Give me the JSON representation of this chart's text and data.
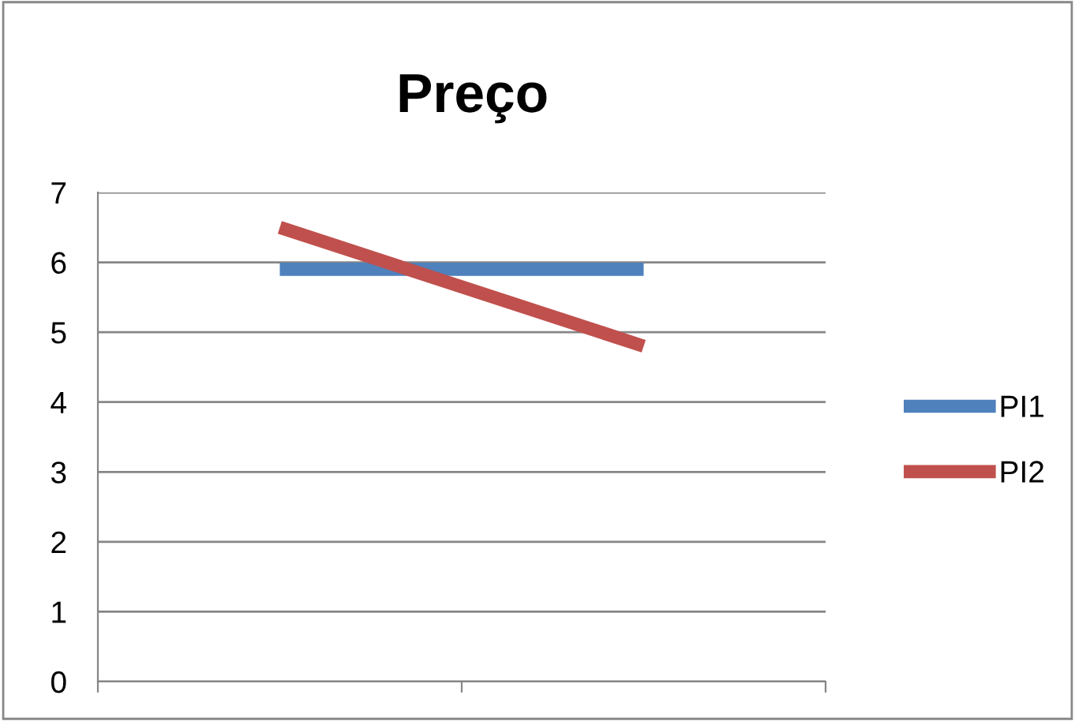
{
  "chart_data": {
    "type": "line",
    "title": "Preço",
    "categories": [
      null,
      null
    ],
    "series": [
      {
        "name": "PI1",
        "color": "#4f81bd",
        "values": [
          5.9,
          5.9
        ]
      },
      {
        "name": "PI2",
        "color": "#c0504d",
        "values": [
          6.5,
          4.8
        ]
      }
    ],
    "ylim": [
      0,
      7
    ],
    "yticks": [
      0,
      1,
      2,
      3,
      4,
      5,
      6,
      7
    ],
    "grid": "y",
    "legend": "right",
    "tick_labels": "y",
    "marker": "none",
    "line_style": "solid"
  }
}
